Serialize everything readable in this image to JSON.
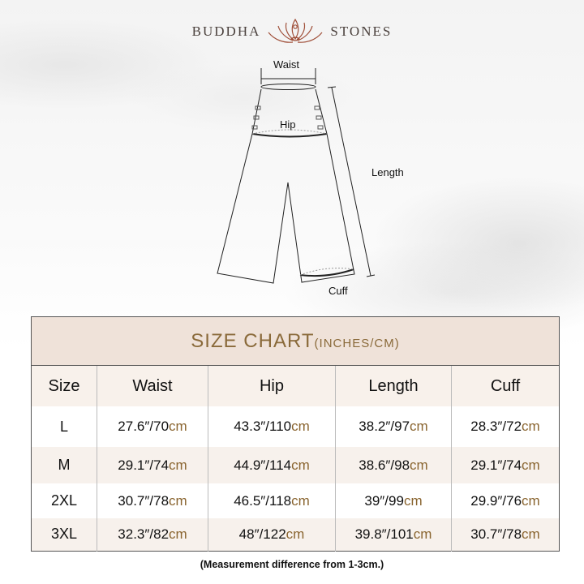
{
  "brand": {
    "left": "BUDDHA",
    "right": "STONES",
    "logo_icon": "lotus-meditation-icon",
    "logo_color": "#a0503a"
  },
  "diagram": {
    "waist": "Waist",
    "hip": "Hip",
    "length": "Length",
    "cuff": "Cuff"
  },
  "table": {
    "title": "SIZE CHART",
    "title_units": "(INCHES/CM)",
    "accent_color": "#8a6a3a",
    "headers": [
      "Size",
      "Waist",
      "Hip",
      "Length",
      "Cuff"
    ],
    "unit": "cm",
    "rows": [
      {
        "size": "L",
        "cells": [
          "27.6″/70",
          "43.3″/110",
          "38.2″/97",
          "28.3″/72"
        ]
      },
      {
        "size": "M",
        "cells": [
          "29.1″/74",
          "44.9″/114",
          "38.6″/98",
          "29.1″/74"
        ]
      },
      {
        "size": "2XL",
        "cells": [
          "30.7″/78",
          "46.5″/118",
          "39″/99",
          "29.9″/76"
        ]
      },
      {
        "size": "3XL",
        "cells": [
          "32.3″/82",
          "48″/122",
          "39.8″/101",
          "30.7″/78"
        ]
      }
    ]
  },
  "note": "(Measurement difference from 1-3cm.)"
}
